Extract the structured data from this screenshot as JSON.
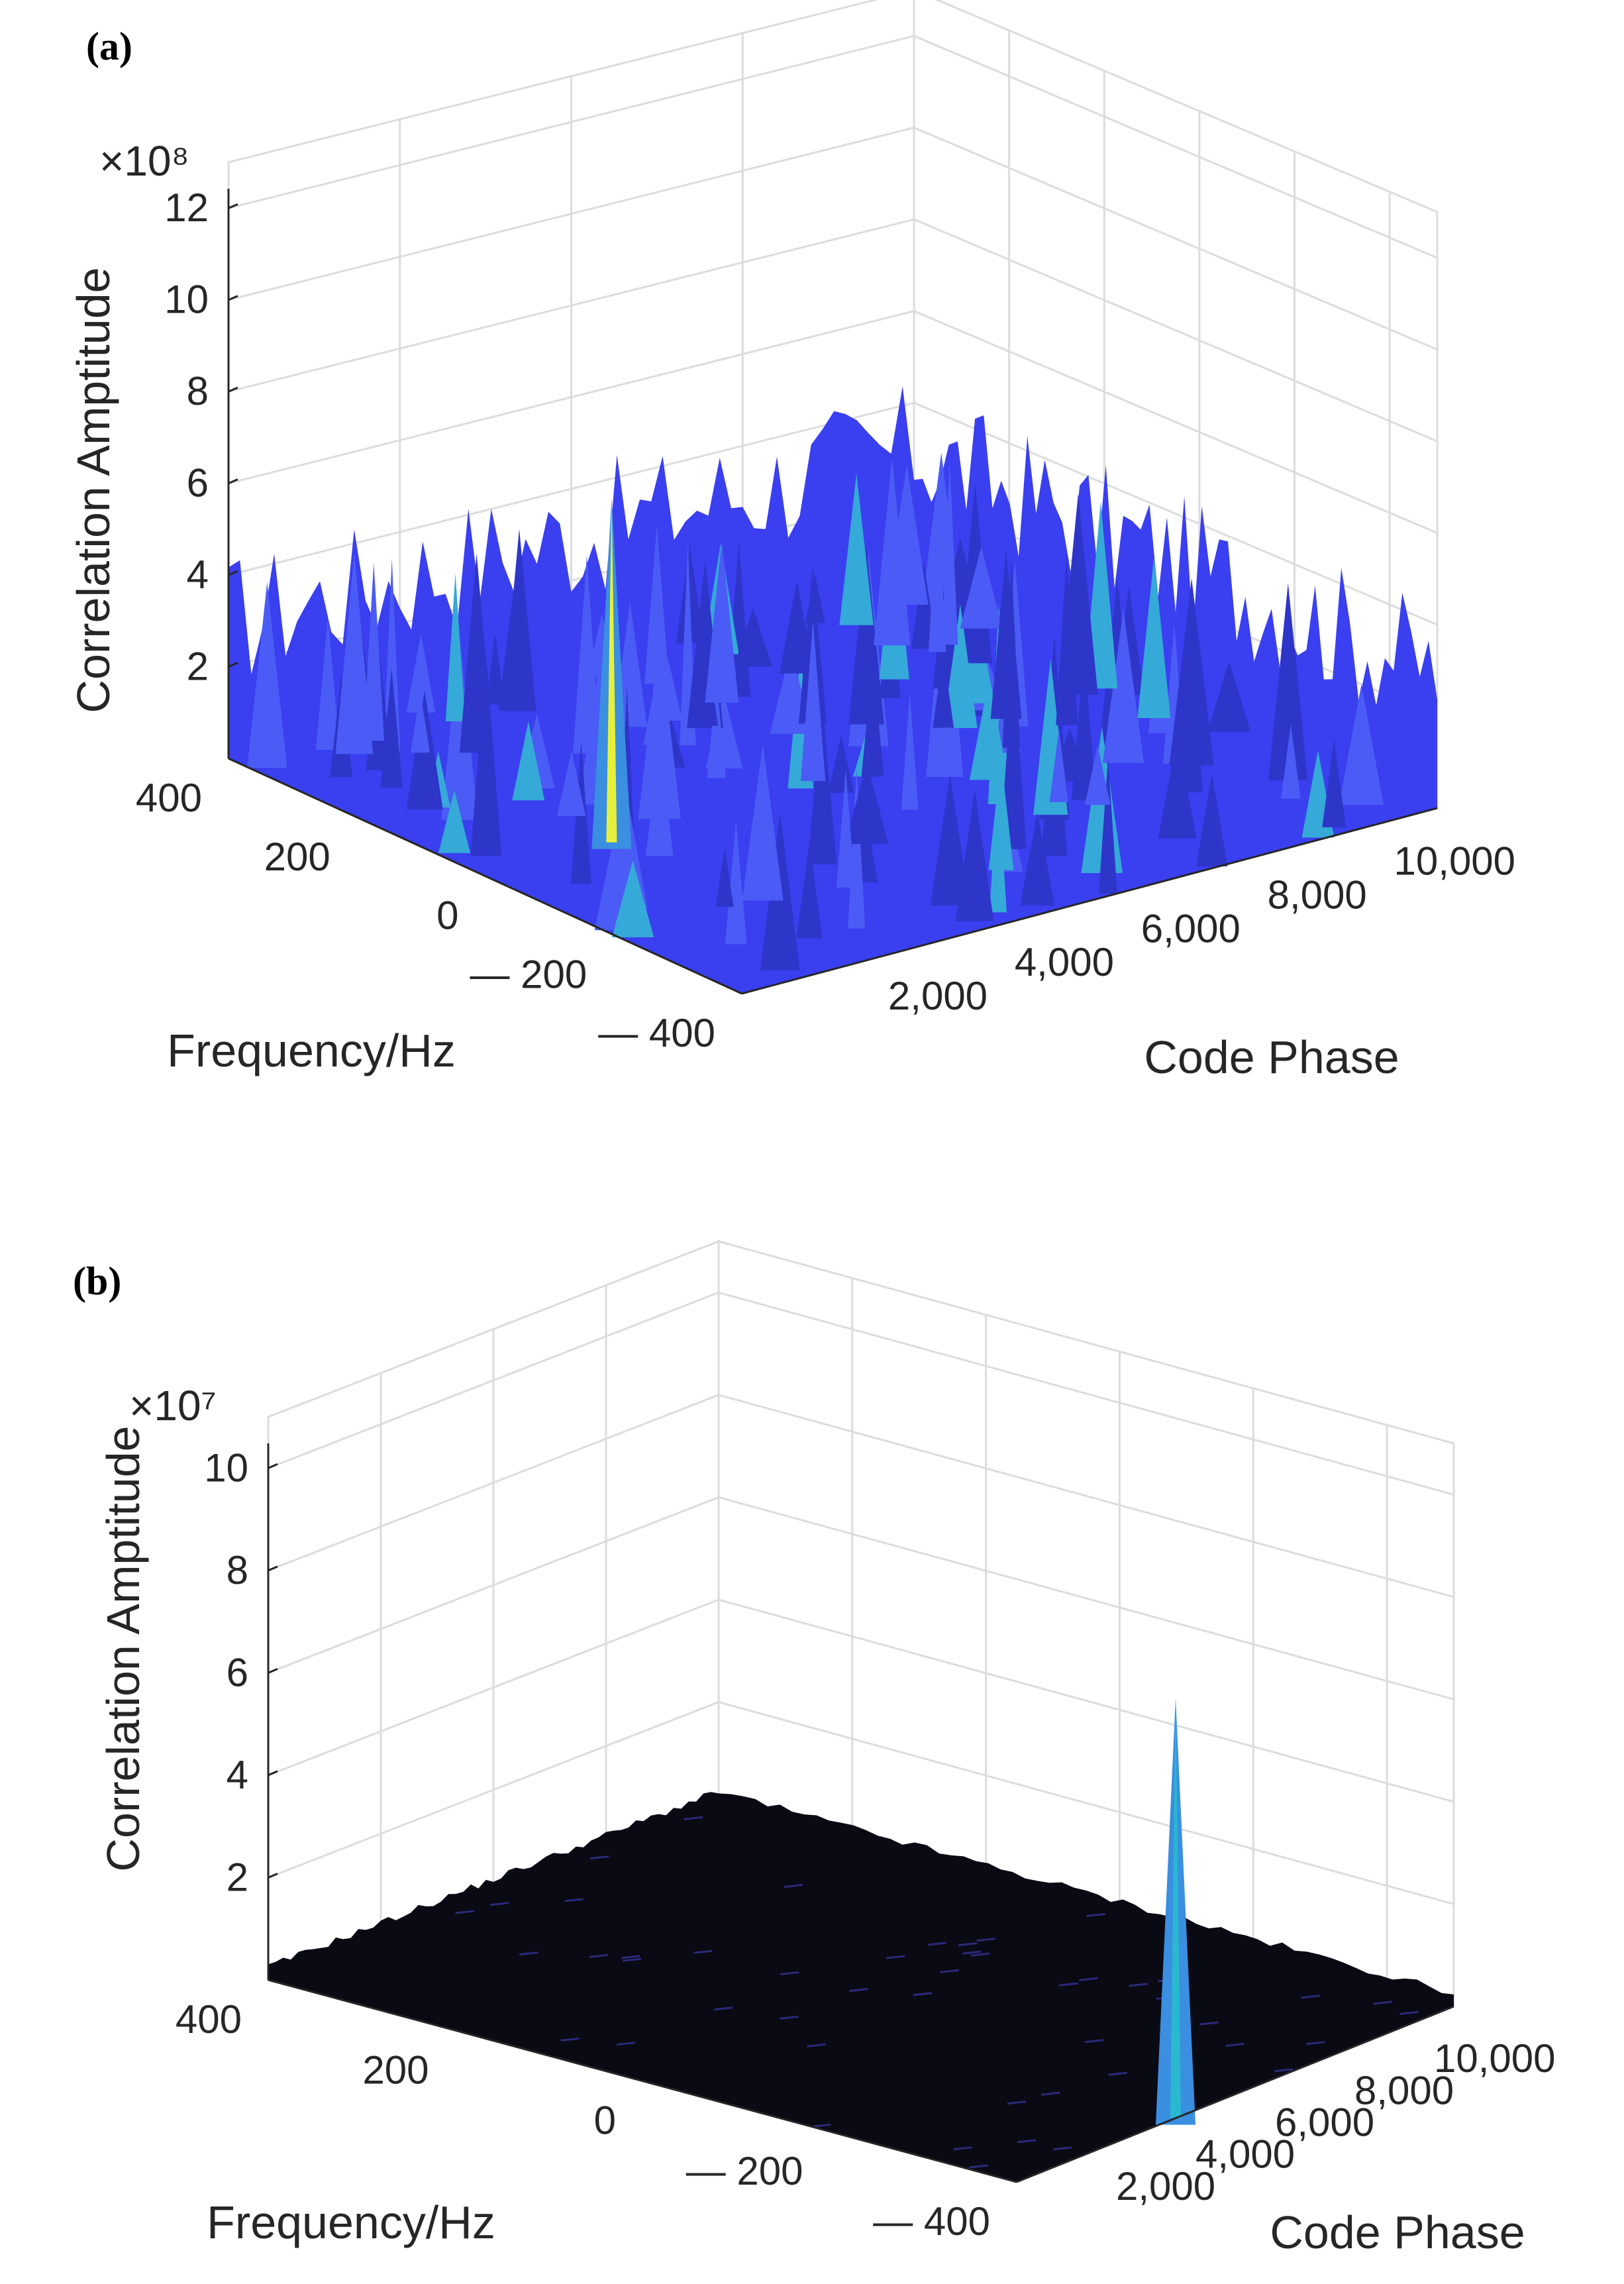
{
  "chart_data": [
    {
      "panel": "(a)",
      "type": "surface3d",
      "zlabel": "Correlation Amptitude",
      "xlabel": "Frequency/Hz",
      "ylabel": "Code Phase",
      "z_scale": "×10⁸",
      "z_ticks": [
        "12",
        "10",
        "8",
        "6",
        "4",
        "2"
      ],
      "z_tick_values": [
        12,
        10,
        8,
        6,
        4,
        2
      ],
      "zlim": [
        0,
        13
      ],
      "x_ticks": [
        "400",
        "200",
        "0",
        "— 200",
        "— 400"
      ],
      "x_tick_values": [
        400,
        200,
        0,
        -200,
        -400
      ],
      "y_ticks": [
        "2,000",
        "4,000",
        "6,000",
        "8,000",
        "10,000"
      ],
      "y_tick_values": [
        2000,
        4000,
        6000,
        8000,
        10000
      ],
      "noise_floor_approx": 2.5,
      "peak": {
        "frequency": 0,
        "code_phase": 2000,
        "amplitude": 7.5
      }
    },
    {
      "panel": "(b)",
      "type": "surface3d",
      "zlabel": "Correlation Amptitude",
      "xlabel": "Frequency/Hz",
      "ylabel": "Code Phase",
      "z_scale": "×10⁷",
      "z_ticks": [
        "10",
        "8",
        "6",
        "4",
        "2"
      ],
      "z_tick_values": [
        10,
        8,
        6,
        4,
        2
      ],
      "zlim": [
        0,
        11
      ],
      "x_ticks": [
        "400",
        "200",
        "0",
        "— 200",
        "— 400"
      ],
      "x_tick_values": [
        400,
        200,
        0,
        -200,
        -400
      ],
      "y_ticks": [
        "2,000",
        "4,000",
        "6,000",
        "8,000",
        "10,000"
      ],
      "y_tick_values": [
        2000,
        4000,
        6000,
        8000,
        10000
      ],
      "noise_floor_approx": 0.3,
      "peak": {
        "frequency": -400,
        "code_phase": 4000,
        "amplitude": 8.2
      }
    }
  ],
  "colors": {
    "surface_a": "#3a3ff0",
    "surface_b": "#0a0a14",
    "peak_yellow": "#e6f03c",
    "peak_cyan": "#2ab8d0"
  }
}
